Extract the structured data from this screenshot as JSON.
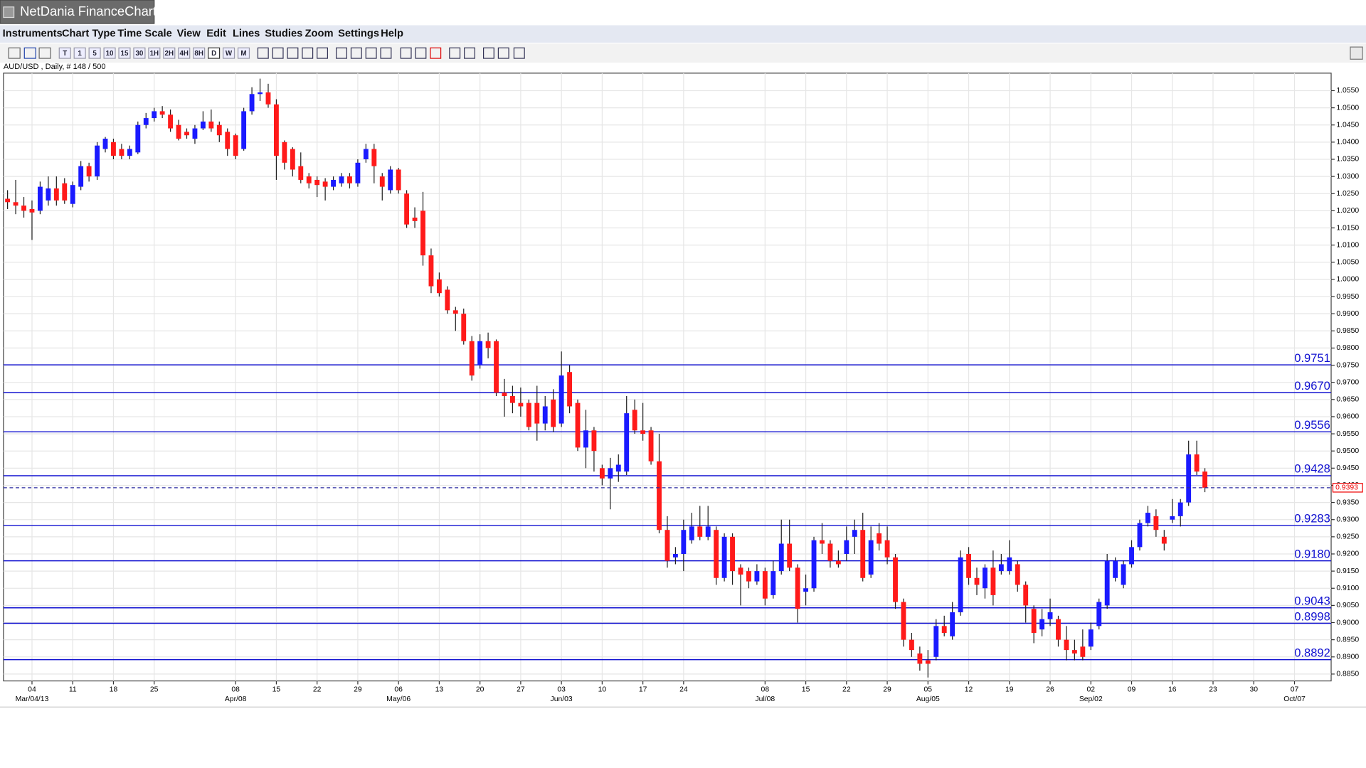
{
  "window": {
    "title": "NetDania FinanceChart"
  },
  "menu": [
    "Instruments",
    "Chart Type",
    "Time Scale",
    "View",
    "Edit",
    "Lines",
    "Studies",
    "Zoom",
    "Settings",
    "Help"
  ],
  "toolbar": [
    "T",
    "1",
    "5",
    "10",
    "15",
    "30",
    "1H",
    "2H",
    "4H",
    "8H",
    "D",
    "W",
    "M"
  ],
  "chart_data": {
    "type": "candlestick",
    "title": "AUD/USD , Daily, # 148 / 500",
    "categories": [
      null,
      null,
      null,
      "04",
      null,
      null,
      null,
      null,
      "11",
      null,
      null,
      null,
      null,
      "18",
      null,
      null,
      null,
      null,
      "25",
      null,
      null,
      null,
      null,
      null,
      null,
      null,
      null,
      null,
      "08",
      null,
      null,
      null,
      null,
      "15",
      null,
      null,
      null,
      null,
      "22",
      null,
      null,
      null,
      null,
      "29",
      null,
      null,
      null,
      null,
      "06",
      null,
      null,
      null,
      null,
      "13",
      null,
      null,
      null,
      null,
      "20",
      null,
      null,
      null,
      null,
      "27",
      null,
      null,
      null,
      null,
      "03",
      null,
      null,
      null,
      null,
      "10",
      null,
      null,
      null,
      null,
      "17",
      null,
      null,
      null,
      null,
      "24",
      null,
      null,
      null,
      null,
      null,
      null,
      null,
      null,
      null,
      "08",
      null,
      null,
      null,
      null,
      "15",
      null,
      null,
      null,
      null,
      "22",
      null,
      null,
      null,
      null,
      "29",
      null,
      null,
      null,
      null,
      "05",
      null,
      null,
      null,
      null,
      "12",
      null,
      null,
      null,
      null,
      "19",
      null,
      null,
      null,
      null,
      "26",
      null,
      null,
      null,
      null,
      "02",
      null,
      null,
      null,
      null,
      "09",
      null,
      null,
      null,
      null,
      "16",
      null,
      null,
      null,
      null,
      "23",
      null,
      null,
      null,
      null,
      "30",
      null,
      null,
      null,
      null,
      "07",
      null,
      null,
      null,
      null
    ],
    "category_months": [
      null,
      null,
      null,
      "Mar/04/13",
      null,
      null,
      null,
      null,
      null,
      null,
      null,
      null,
      null,
      null,
      null,
      null,
      null,
      null,
      null,
      null,
      null,
      null,
      null,
      null,
      null,
      null,
      null,
      null,
      "Apr/08",
      null,
      null,
      null,
      null,
      null,
      null,
      null,
      null,
      null,
      null,
      null,
      null,
      null,
      null,
      null,
      null,
      null,
      null,
      null,
      "May/06",
      null,
      null,
      null,
      null,
      null,
      null,
      null,
      null,
      null,
      null,
      null,
      null,
      null,
      null,
      null,
      null,
      null,
      null,
      null,
      "Jun/03",
      null,
      null,
      null,
      null,
      null,
      null,
      null,
      null,
      null,
      null,
      null,
      null,
      null,
      null,
      null,
      null,
      null,
      null,
      null,
      null,
      null,
      null,
      null,
      null,
      "Jul/08",
      null,
      null,
      null,
      null,
      null,
      null,
      null,
      null,
      null,
      null,
      null,
      null,
      null,
      null,
      null,
      null,
      null,
      null,
      null,
      "Aug/05",
      null,
      null,
      null,
      null,
      null,
      null,
      null,
      null,
      null,
      null,
      null,
      null,
      null,
      null,
      null,
      null,
      null,
      null,
      null,
      "Sep/02",
      null,
      null,
      null,
      null,
      null,
      null,
      null,
      null,
      null,
      null,
      null,
      null,
      null,
      null,
      null,
      null,
      null,
      null,
      null,
      null,
      null,
      null,
      null,
      null,
      "Oct/07",
      null,
      null,
      null,
      null
    ],
    "open": [
      1.0235,
      1.0225,
      1.0215,
      1.0205,
      1.02,
      1.023,
      1.0265,
      1.028,
      1.022,
      1.027,
      1.033,
      1.03,
      1.038,
      1.04,
      1.038,
      1.036,
      1.037,
      1.045,
      1.047,
      1.049,
      1.048,
      1.045,
      1.043,
      1.041,
      1.044,
      1.046,
      1.045,
      1.043,
      1.042,
      1.038,
      1.049,
      1.054,
      1.0545,
      1.051,
      1.04,
      1.038,
      1.033,
      1.03,
      1.029,
      1.0285,
      1.027,
      1.028,
      1.03,
      1.028,
      1.035,
      1.038,
      1.03,
      1.026,
      1.032,
      1.025,
      1.018,
      1.02,
      1.007,
      1.0,
      0.997,
      0.991,
      0.99,
      0.982,
      0.975,
      0.982,
      0.982,
      0.967,
      0.966,
      0.964,
      0.964,
      0.964,
      0.958,
      0.965,
      0.958,
      0.973,
      0.964,
      0.951,
      0.956,
      0.945,
      0.942,
      0.944,
      0.944,
      0.962,
      0.956,
      0.956,
      0.947,
      0.927,
      0.919,
      0.92,
      0.924,
      0.928,
      0.925,
      0.927,
      0.913,
      0.925,
      0.916,
      0.915,
      0.912,
      0.915,
      0.908,
      0.915,
      0.923,
      0.916,
      0.909,
      0.91,
      0.924,
      0.923,
      0.918,
      0.92,
      0.925,
      0.927,
      0.914,
      0.926,
      0.924,
      0.919,
      0.906,
      0.895,
      0.891,
      0.889,
      0.89,
      0.899,
      0.896,
      0.903,
      0.92,
      0.913,
      0.91,
      0.916,
      0.915,
      0.915,
      0.917,
      0.911,
      0.904,
      0.898,
      0.901,
      0.901,
      0.895,
      0.892,
      0.893,
      0.893,
      0.899,
      0.905,
      0.913,
      0.911,
      0.917,
      0.922,
      0.929,
      0.931,
      0.925,
      0.93,
      0.931,
      0.935,
      0.949,
      0.944,
      null,
      null,
      null,
      null,
      null,
      null,
      null,
      null,
      null,
      null,
      null,
      null,
      null,
      null,
      null
    ],
    "high": [
      1.026,
      1.029,
      1.024,
      1.023,
      1.0285,
      1.03,
      1.03,
      1.0295,
      1.0285,
      1.0345,
      1.034,
      1.04,
      1.0415,
      1.041,
      1.0395,
      1.039,
      1.046,
      1.0485,
      1.05,
      1.0505,
      1.0495,
      1.0465,
      1.044,
      1.045,
      1.049,
      1.0495,
      1.046,
      1.044,
      1.0425,
      1.05,
      1.056,
      1.0585,
      1.057,
      1.0525,
      1.0405,
      1.0385,
      1.037,
      1.031,
      1.03,
      1.0295,
      1.03,
      1.031,
      1.031,
      1.035,
      1.0395,
      1.0395,
      1.031,
      1.033,
      1.0325,
      1.026,
      1.021,
      1.0255,
      1.009,
      1.002,
      0.998,
      0.992,
      0.9915,
      0.9835,
      0.984,
      0.9845,
      0.9825,
      0.971,
      0.969,
      0.9685,
      0.965,
      0.969,
      0.966,
      0.968,
      0.979,
      0.975,
      0.965,
      0.962,
      0.957,
      0.946,
      0.948,
      0.949,
      0.966,
      0.965,
      0.964,
      0.957,
      0.955,
      0.931,
      0.922,
      0.93,
      0.932,
      0.934,
      0.934,
      0.928,
      0.926,
      0.926,
      0.917,
      0.916,
      0.917,
      0.916,
      0.918,
      0.93,
      0.93,
      0.917,
      0.914,
      0.925,
      0.929,
      0.924,
      0.921,
      0.928,
      0.93,
      0.932,
      0.928,
      0.929,
      0.928,
      0.92,
      0.907,
      0.897,
      0.893,
      0.892,
      0.901,
      0.902,
      0.906,
      0.921,
      0.922,
      0.916,
      0.917,
      0.921,
      0.92,
      0.924,
      0.918,
      0.912,
      0.905,
      0.904,
      0.907,
      0.902,
      0.899,
      0.895,
      0.898,
      0.9,
      0.907,
      0.92,
      0.919,
      0.918,
      0.924,
      0.93,
      0.934,
      0.933,
      0.927,
      0.936,
      0.936,
      0.953,
      0.953,
      0.945,
      null,
      null,
      null,
      null,
      null,
      null,
      null,
      null,
      null,
      null,
      null,
      null,
      null,
      null,
      null
    ],
    "low": [
      1.0205,
      1.019,
      1.018,
      1.0115,
      1.019,
      1.0215,
      1.0215,
      1.022,
      1.021,
      1.026,
      1.0285,
      1.029,
      1.037,
      1.035,
      1.035,
      1.035,
      1.0365,
      1.044,
      1.046,
      1.047,
      1.043,
      1.0405,
      1.041,
      1.0395,
      1.0435,
      1.043,
      1.04,
      1.036,
      1.035,
      1.0375,
      1.048,
      1.052,
      1.05,
      1.029,
      1.032,
      1.03,
      1.028,
      1.0265,
      1.024,
      1.023,
      1.026,
      1.027,
      1.0265,
      1.027,
      1.034,
      1.028,
      1.023,
      1.025,
      1.025,
      1.015,
      1.015,
      1.004,
      0.996,
      0.995,
      0.99,
      0.985,
      0.981,
      0.9705,
      0.974,
      0.977,
      0.966,
      0.96,
      0.961,
      0.96,
      0.956,
      0.953,
      0.956,
      0.9555,
      0.957,
      0.961,
      0.95,
      0.945,
      0.944,
      0.94,
      0.933,
      0.941,
      0.943,
      0.955,
      0.953,
      0.946,
      0.926,
      0.916,
      0.917,
      0.915,
      0.923,
      0.924,
      0.924,
      0.911,
      0.912,
      0.911,
      0.905,
      0.91,
      0.911,
      0.905,
      0.907,
      0.914,
      0.915,
      0.9,
      0.905,
      0.909,
      0.92,
      0.916,
      0.916,
      0.918,
      0.92,
      0.912,
      0.913,
      0.921,
      0.917,
      0.904,
      0.893,
      0.89,
      0.886,
      0.884,
      0.889,
      0.896,
      0.895,
      0.902,
      0.911,
      0.908,
      0.907,
      0.905,
      0.914,
      0.914,
      0.909,
      0.9,
      0.894,
      0.896,
      0.899,
      0.893,
      0.889,
      0.889,
      0.889,
      0.892,
      0.898,
      0.904,
      0.912,
      0.91,
      0.916,
      0.921,
      0.928,
      0.925,
      0.921,
      0.929,
      0.928,
      0.934,
      0.943,
      0.938,
      null,
      null,
      null,
      null,
      null,
      null,
      null,
      null,
      null,
      null,
      null,
      null,
      null,
      null,
      null
    ],
    "close": [
      1.0225,
      1.0215,
      1.02,
      1.0195,
      1.027,
      1.0265,
      1.023,
      1.023,
      1.0275,
      1.033,
      1.03,
      1.039,
      1.041,
      1.036,
      1.036,
      1.038,
      1.045,
      1.047,
      1.049,
      1.048,
      1.044,
      1.041,
      1.042,
      1.044,
      1.046,
      1.044,
      1.042,
      1.038,
      1.036,
      1.049,
      1.054,
      1.0545,
      1.051,
      1.036,
      1.034,
      1.032,
      1.029,
      1.028,
      1.0275,
      1.027,
      1.029,
      1.03,
      1.028,
      1.034,
      1.038,
      1.033,
      1.027,
      1.032,
      1.026,
      1.016,
      1.017,
      1.007,
      0.998,
      0.996,
      0.991,
      0.99,
      0.982,
      0.972,
      0.982,
      0.98,
      0.967,
      0.966,
      0.964,
      0.963,
      0.957,
      0.958,
      0.963,
      0.957,
      0.972,
      0.963,
      0.951,
      0.956,
      0.95,
      0.942,
      0.945,
      0.946,
      0.961,
      0.956,
      0.955,
      0.947,
      0.927,
      0.918,
      0.92,
      0.927,
      0.928,
      0.925,
      0.928,
      0.913,
      0.925,
      0.915,
      0.914,
      0.912,
      0.915,
      0.907,
      0.915,
      0.923,
      0.916,
      0.904,
      0.91,
      0.924,
      0.923,
      0.918,
      0.917,
      0.924,
      0.927,
      0.913,
      0.924,
      0.923,
      0.919,
      0.906,
      0.895,
      0.892,
      0.888,
      0.888,
      0.899,
      0.897,
      0.903,
      0.919,
      0.913,
      0.911,
      0.916,
      0.908,
      0.917,
      0.919,
      0.911,
      0.905,
      0.897,
      0.901,
      0.903,
      0.895,
      0.892,
      0.891,
      0.89,
      0.898,
      0.906,
      0.918,
      0.918,
      0.917,
      0.922,
      0.929,
      0.932,
      0.927,
      0.923,
      0.931,
      0.935,
      0.949,
      0.944,
      0.9393,
      null,
      null,
      null,
      null,
      null,
      null,
      null,
      null,
      null,
      null,
      null,
      null,
      null,
      null,
      null
    ],
    "up_color": "#1a1aff",
    "down_color": "#ff1a1a",
    "wick_color": "#202020",
    "ylim": [
      0.883,
      1.0601
    ],
    "yticks": [
      {
        "value": 1.055,
        "label": "1.0550"
      },
      {
        "value": 1.05,
        "label": "1.0500"
      },
      {
        "value": 1.045,
        "label": "1.0450"
      },
      {
        "value": 1.04,
        "label": "1.0400"
      },
      {
        "value": 1.035,
        "label": "1.0350"
      },
      {
        "value": 1.03,
        "label": "1.0300"
      },
      {
        "value": 1.025,
        "label": "1.0250"
      },
      {
        "value": 1.02,
        "label": "1.0200"
      },
      {
        "value": 1.015,
        "label": "1.0150"
      },
      {
        "value": 1.01,
        "label": "1.0100"
      },
      {
        "value": 1.005,
        "label": "1.0050"
      },
      {
        "value": 1.0,
        "label": "1.0000"
      },
      {
        "value": 0.995,
        "label": "0.9950"
      },
      {
        "value": 0.99,
        "label": "0.9900"
      },
      {
        "value": 0.985,
        "label": "0.9850"
      },
      {
        "value": 0.98,
        "label": "0.9800"
      },
      {
        "value": 0.975,
        "label": "0.9750"
      },
      {
        "value": 0.97,
        "label": "0.9700"
      },
      {
        "value": 0.965,
        "label": "0.9650"
      },
      {
        "value": 0.96,
        "label": "0.9600"
      },
      {
        "value": 0.955,
        "label": "0.9550"
      },
      {
        "value": 0.95,
        "label": "0.9500"
      },
      {
        "value": 0.945,
        "label": "0.9450"
      },
      {
        "value": 0.94,
        "label": "0.9400"
      },
      {
        "value": 0.935,
        "label": "0.9350"
      },
      {
        "value": 0.93,
        "label": "0.9300"
      },
      {
        "value": 0.925,
        "label": "0.9250"
      },
      {
        "value": 0.92,
        "label": "0.9200"
      },
      {
        "value": 0.915,
        "label": "0.9150"
      },
      {
        "value": 0.91,
        "label": "0.9100"
      },
      {
        "value": 0.905,
        "label": "0.9050"
      },
      {
        "value": 0.9,
        "label": "0.9000"
      },
      {
        "value": 0.895,
        "label": "0.8950"
      },
      {
        "value": 0.89,
        "label": "0.8900"
      },
      {
        "value": 0.885,
        "label": "0.8850"
      }
    ],
    "grid": true,
    "levels": [
      {
        "value": 0.9751,
        "label": "0.9751"
      },
      {
        "value": 0.967,
        "label": "0.9670"
      },
      {
        "value": 0.9556,
        "label": "0.9556"
      },
      {
        "value": 0.9428,
        "label": "0.9428"
      },
      {
        "value": 0.9283,
        "label": "0.9283"
      },
      {
        "value": 0.918,
        "label": "0.9180"
      },
      {
        "value": 0.9043,
        "label": "0.9043"
      },
      {
        "value": 0.8998,
        "label": "0.8998"
      },
      {
        "value": 0.8892,
        "label": "0.8892"
      }
    ],
    "level_color": "#1010d0",
    "last": {
      "value": 0.9393,
      "label": "0.9393"
    }
  }
}
